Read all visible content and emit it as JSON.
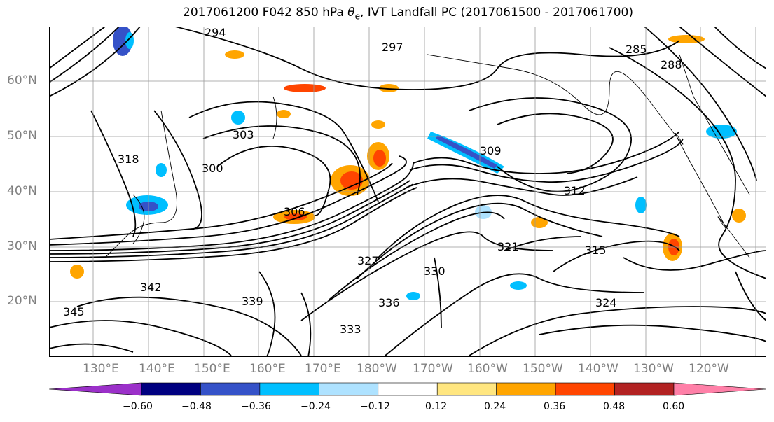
{
  "title_prefix": "2017061200 F042 850 hPa ",
  "title_symbol": "θ",
  "title_subscript": "e",
  "title_suffix": ", IVT Landfall PC (2017061500 - 2017061700)",
  "map": {
    "lat_labels": [
      "60°N",
      "50°N",
      "40°N",
      "30°N",
      "20°N"
    ],
    "lon_labels": [
      "130°E",
      "140°E",
      "150°E",
      "160°E",
      "170°E",
      "180°W",
      "170°W",
      "160°W",
      "150°W",
      "140°W",
      "130°W",
      "120°W"
    ],
    "contour_labels": [
      "294",
      "297",
      "300",
      "303",
      "306",
      "309",
      "312",
      "315",
      "318",
      "321",
      "324",
      "327",
      "330",
      "333",
      "336",
      "339",
      "342",
      "345",
      "285",
      "288"
    ],
    "contour_color": "#000000",
    "grid_color": "#999999",
    "coast_color": "#000000"
  },
  "colorbar": {
    "colors": [
      "#9b30c9",
      "#000080",
      "#3552c8",
      "#00bfff",
      "#aee2ff",
      "#ffffff",
      "#ffe680",
      "#ffa500",
      "#ff4500",
      "#b22222",
      "#ff80a8"
    ],
    "tick_labels": [
      "−0.60",
      "−0.48",
      "−0.36",
      "−0.24",
      "−0.12",
      "0.12",
      "0.24",
      "0.36",
      "0.48",
      "0.60"
    ]
  }
}
